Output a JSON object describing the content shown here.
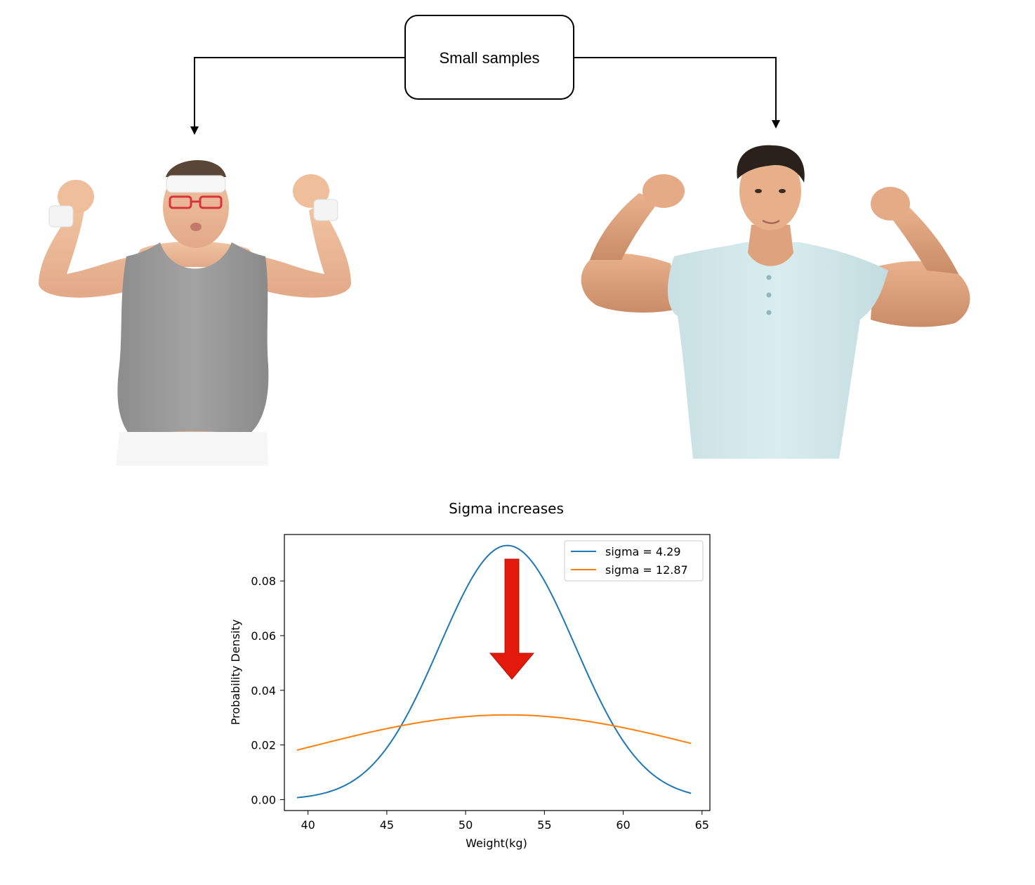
{
  "diagram": {
    "box_label": "Small samples",
    "left_figure": "overweight man flexing arms (grey tank top, red glasses, white headband)",
    "right_figure": "fit man flexing arms (light blue t-shirt)"
  },
  "colors": {
    "series1": "#1f77b4",
    "series2": "#ff7f0e",
    "arrow": "#e31a0b"
  },
  "chart_data": {
    "type": "line",
    "title": "Sigma increases",
    "xlabel": "Weight(kg)",
    "ylabel": "Probability Density",
    "xlim": [
      38.5,
      65.5
    ],
    "ylim": [
      -0.004,
      0.097
    ],
    "xticks": [
      40,
      45,
      50,
      55,
      60,
      65
    ],
    "yticks": [
      0.0,
      0.02,
      0.04,
      0.06,
      0.08
    ],
    "xtick_labels": [
      "40",
      "45",
      "50",
      "55",
      "60",
      "65"
    ],
    "ytick_labels": [
      "0.00",
      "0.02",
      "0.04",
      "0.06",
      "0.08"
    ],
    "x_range": [
      39.3,
      64.3
    ],
    "legend_position": "top-right",
    "series": [
      {
        "name": "sigma = 4.29",
        "mu": 52.65,
        "sigma": 4.29,
        "color": "#1f77b4"
      },
      {
        "name": "sigma = 12.87",
        "mu": 52.65,
        "sigma": 12.87,
        "color": "#ff7f0e"
      }
    ],
    "annotation": "red downward arrow over the peak"
  }
}
